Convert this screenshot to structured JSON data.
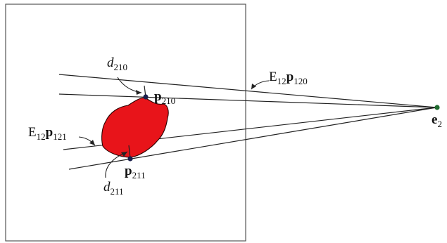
{
  "labels": {
    "d210": {
      "base": "d",
      "sub": "210"
    },
    "p210": {
      "base": "p",
      "sub": "210"
    },
    "E12p120": {
      "pre": "E",
      "pre_sub": "12",
      "base": "p",
      "sub": "120"
    },
    "E12p121": {
      "pre": "E",
      "pre_sub": "12",
      "base": "p",
      "sub": "121"
    },
    "p211": {
      "base": "p",
      "sub": "211"
    },
    "d211": {
      "base": "d",
      "sub": "211"
    },
    "e2": {
      "base": "e",
      "sub": "2"
    }
  },
  "colors": {
    "blob_fill": "#e8141a",
    "blob_stroke": "#2a0000",
    "line": "#222222",
    "frame": "#555555",
    "point": "#1a1f4a",
    "epipole": "#1f6b2f"
  }
}
